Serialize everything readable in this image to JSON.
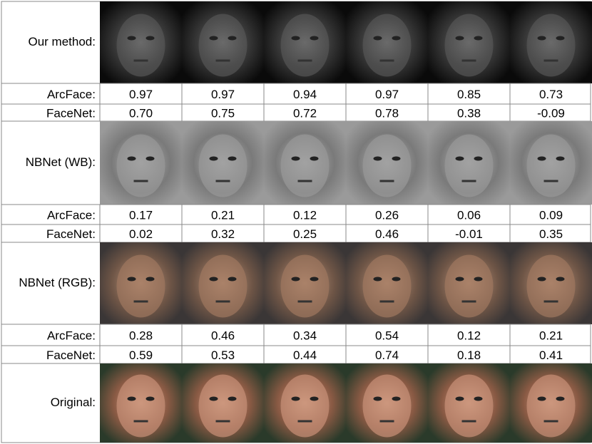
{
  "rows": [
    {
      "label": "Our method:",
      "scores": [
        {
          "label": "ArcFace:",
          "values": [
            "0.97",
            "0.97",
            "0.94",
            "0.97",
            "0.85",
            "0.73"
          ]
        },
        {
          "label": "FaceNet:",
          "values": [
            "0.70",
            "0.75",
            "0.72",
            "0.78",
            "0.38",
            "-0.09"
          ]
        }
      ]
    },
    {
      "label": "NBNet (WB):",
      "scores": [
        {
          "label": "ArcFace:",
          "values": [
            "0.17",
            "0.21",
            "0.12",
            "0.26",
            "0.06",
            "0.09"
          ]
        },
        {
          "label": "FaceNet:",
          "values": [
            "0.02",
            "0.32",
            "0.25",
            "0.46",
            "-0.01",
            "0.35"
          ]
        }
      ]
    },
    {
      "label": "NBNet (RGB):",
      "scores": [
        {
          "label": "ArcFace:",
          "values": [
            "0.28",
            "0.46",
            "0.34",
            "0.54",
            "0.12",
            "0.21"
          ]
        },
        {
          "label": "FaceNet:",
          "values": [
            "0.59",
            "0.53",
            "0.44",
            "0.74",
            "0.18",
            "0.41"
          ]
        }
      ]
    },
    {
      "label": "Original:"
    }
  ]
}
